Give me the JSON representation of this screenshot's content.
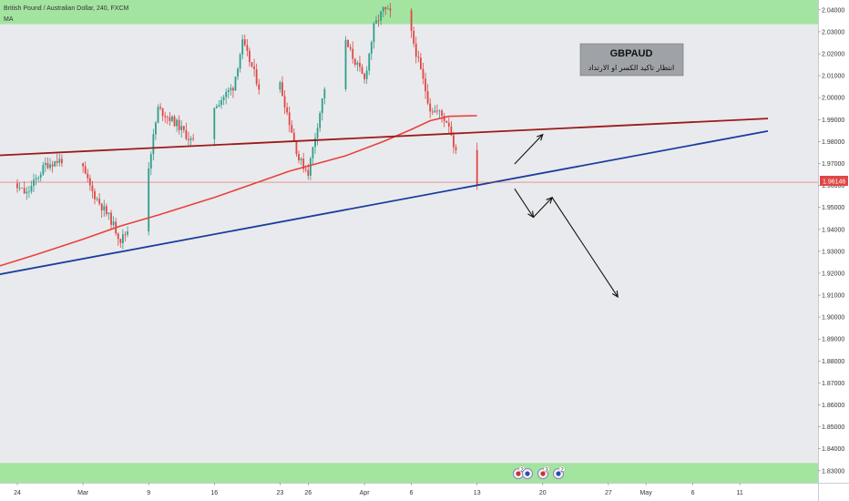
{
  "header": {
    "symbol_line": "British Pound / Australian Dollar, 240, FXCM",
    "indicator": "MA"
  },
  "annotation": {
    "title": "GBPAUD",
    "subtitle": "انتظار تاكيد الكسر او الارتداد"
  },
  "current_price_label": "1.96146",
  "events": [
    {
      "label": "2",
      "icon": "event-flag-icon"
    },
    {
      "label": "",
      "icon": "event-flag-icon"
    },
    {
      "label": "3",
      "icon": "event-flag-icon"
    },
    {
      "label": "2",
      "icon": "event-flag-icon"
    }
  ],
  "colors": {
    "background": "#e9eaed",
    "zone": "#a3e4a0",
    "resistance_line": "#9c1a1a",
    "support_line": "#1b3d9e",
    "moving_average": "#e8413a",
    "candle_up": "#2e9e8a",
    "candle_down": "#e04646",
    "price_tag": "#e04646",
    "annotation_box": "#9fa3a8"
  },
  "chart_data": {
    "type": "candlestick",
    "symbol": "GBPAUD",
    "timeframe": "240",
    "y_ticks": [
      "2.04000",
      "2.03000",
      "2.02000",
      "2.01000",
      "2.00000",
      "1.99000",
      "1.98000",
      "1.97000",
      "1.96000",
      "1.95000",
      "1.94000",
      "1.93000",
      "1.92000",
      "1.91000",
      "1.90000",
      "1.89000",
      "1.88000",
      "1.87000",
      "1.86000",
      "1.85000",
      "1.84000",
      "1.83000"
    ],
    "ylim": [
      1.8245,
      2.0445
    ],
    "x_ticks": [
      {
        "label": "24",
        "date": "2020-02-24"
      },
      {
        "label": "Mar",
        "date": "2020-03-02"
      },
      {
        "label": "9",
        "date": "2020-03-09"
      },
      {
        "label": "16",
        "date": "2020-03-16"
      },
      {
        "label": "23",
        "date": "2020-03-23"
      },
      {
        "label": "26",
        "date": "2020-03-26"
      },
      {
        "label": "Apr",
        "date": "2020-04-01"
      },
      {
        "label": "6",
        "date": "2020-04-06"
      },
      {
        "label": "13",
        "date": "2020-04-13"
      },
      {
        "label": "20",
        "date": "2020-04-20"
      },
      {
        "label": "27",
        "date": "2020-04-27"
      },
      {
        "label": "May",
        "date": "2020-05-01"
      },
      {
        "label": "6",
        "date": "2020-05-06"
      },
      {
        "label": "11",
        "date": "2020-05-11"
      }
    ],
    "current_price": 1.96146,
    "zones": [
      {
        "name": "upper-zone",
        "from": 2.0335,
        "to": 2.0445
      },
      {
        "name": "lower-zone",
        "from": 1.8245,
        "to": 1.8335
      }
    ],
    "trendlines": [
      {
        "name": "resistance",
        "start": {
          "date": "2020-02-20",
          "price": 1.9733
        },
        "end": {
          "date": "2020-05-14",
          "price": 1.9905
        }
      },
      {
        "name": "support",
        "start": {
          "date": "2020-02-20",
          "price": 1.9178
        },
        "end": {
          "date": "2020-05-14",
          "price": 1.9848
        }
      }
    ],
    "arrows": [
      {
        "name": "breakout-up",
        "from": {
          "date": "2020-04-17",
          "price": 1.9698
        },
        "to": {
          "date": "2020-04-20",
          "price": 1.9832
        }
      },
      {
        "name": "drop-down",
        "from": {
          "date": "2020-04-17",
          "price": 1.9585
        },
        "to": {
          "date": "2020-04-19",
          "price": 1.9455
        }
      },
      {
        "name": "retest-up",
        "from": {
          "date": "2020-04-19",
          "price": 1.9455
        },
        "to": {
          "date": "2020-04-21",
          "price": 1.9545
        }
      },
      {
        "name": "final-drop",
        "from": {
          "date": "2020-04-21",
          "price": 1.9545
        },
        "to": {
          "date": "2020-04-28",
          "price": 1.9092
        }
      }
    ],
    "moving_average": [
      {
        "date": "2020-02-20",
        "price": 1.9205
      },
      {
        "date": "2020-02-26",
        "price": 1.9285
      },
      {
        "date": "2020-03-02",
        "price": 1.9355
      },
      {
        "date": "2020-03-06",
        "price": 1.9415
      },
      {
        "date": "2020-03-10",
        "price": 1.9465
      },
      {
        "date": "2020-03-16",
        "price": 1.9545
      },
      {
        "date": "2020-03-20",
        "price": 1.9605
      },
      {
        "date": "2020-03-24",
        "price": 1.9665
      },
      {
        "date": "2020-03-30",
        "price": 1.9735
      },
      {
        "date": "2020-04-03",
        "price": 1.98
      },
      {
        "date": "2020-04-06",
        "price": 1.9855
      },
      {
        "date": "2020-04-08",
        "price": 1.9895
      },
      {
        "date": "2020-04-10",
        "price": 1.9915
      },
      {
        "date": "2020-04-13",
        "price": 1.9918
      }
    ],
    "price_path": [
      {
        "date": "2020-02-20",
        "price": 1.951
      },
      {
        "date": "2020-02-21",
        "price": 1.9585
      },
      {
        "date": "2020-02-23",
        "price": 1.962
      },
      {
        "date": "2020-02-25",
        "price": 1.956
      },
      {
        "date": "2020-02-27",
        "price": 1.9695
      },
      {
        "date": "2020-02-29",
        "price": 1.972
      },
      {
        "date": "2020-03-01",
        "price": 1.9765
      },
      {
        "date": "2020-03-03",
        "price": 1.957
      },
      {
        "date": "2020-03-05",
        "price": 1.944
      },
      {
        "date": "2020-03-06",
        "price": 1.935
      },
      {
        "date": "2020-03-07",
        "price": 1.941
      },
      {
        "date": "2020-03-09",
        "price": 1.969
      },
      {
        "date": "2020-03-10",
        "price": 1.995
      },
      {
        "date": "2020-03-12",
        "price": 1.988
      },
      {
        "date": "2020-03-14",
        "price": 1.978
      },
      {
        "date": "2020-03-16",
        "price": 1.996
      },
      {
        "date": "2020-03-18",
        "price": 2.005
      },
      {
        "date": "2020-03-19",
        "price": 2.025
      },
      {
        "date": "2020-03-20",
        "price": 2.014
      },
      {
        "date": "2020-03-22",
        "price": 1.99
      },
      {
        "date": "2020-03-23",
        "price": 2.006
      },
      {
        "date": "2020-03-25",
        "price": 1.972
      },
      {
        "date": "2020-03-26",
        "price": 1.966
      },
      {
        "date": "2020-03-28",
        "price": 2.01
      },
      {
        "date": "2020-03-30",
        "price": 2.025
      },
      {
        "date": "2020-04-01",
        "price": 2.008
      },
      {
        "date": "2020-04-02",
        "price": 2.032
      },
      {
        "date": "2020-04-03",
        "price": 2.04
      },
      {
        "date": "2020-04-05",
        "price": 2.036
      },
      {
        "date": "2020-04-06",
        "price": 2.029
      },
      {
        "date": "2020-04-07",
        "price": 2.012
      },
      {
        "date": "2020-04-08",
        "price": 1.995
      },
      {
        "date": "2020-04-09",
        "price": 1.993
      },
      {
        "date": "2020-04-10",
        "price": 1.988
      },
      {
        "date": "2020-04-11",
        "price": 1.97
      },
      {
        "date": "2020-04-12",
        "price": 1.963
      },
      {
        "date": "2020-04-13",
        "price": 1.9615
      }
    ]
  }
}
